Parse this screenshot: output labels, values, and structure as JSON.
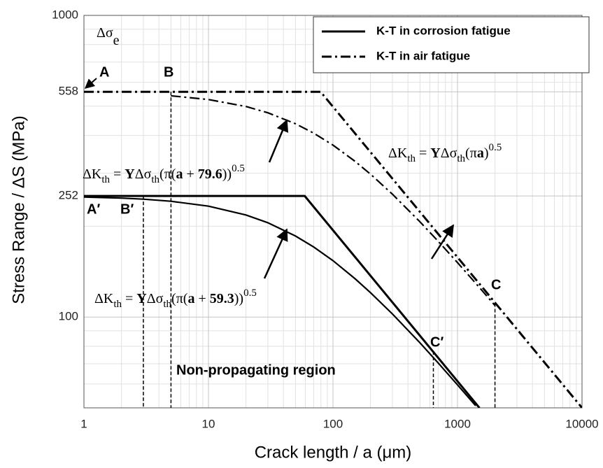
{
  "chart_data": {
    "type": "line",
    "log_scale": {
      "x": true,
      "y": true
    },
    "grid": true,
    "x_label": "Crack length / a (μm)",
    "y_label": "Stress Range / ΔS (MPa)",
    "xlim": [
      1,
      10000
    ],
    "xticks": [
      1,
      10,
      100,
      1000,
      10000
    ],
    "xminor": [
      2,
      3,
      4,
      5,
      6,
      7,
      8,
      9,
      20,
      30,
      40,
      50,
      60,
      70,
      80,
      90,
      200,
      300,
      400,
      500,
      600,
      700,
      800,
      900,
      2000,
      3000,
      4000,
      5000,
      6000,
      7000,
      8000,
      9000
    ],
    "ylim": [
      50,
      1000
    ],
    "yticks": [
      100,
      252,
      558,
      1000
    ],
    "yminor": [
      60,
      70,
      80,
      90,
      200,
      300,
      400,
      500,
      600,
      700,
      800,
      900
    ],
    "legend": "upper right",
    "series": [
      {
        "name": "K-T in corrosion fatigue",
        "color": "#000000",
        "dash": "solid",
        "x": [
          1,
          59.3,
          1500
        ],
        "values": [
          252,
          252,
          50
        ]
      },
      {
        "name": "K-T in air fatigue",
        "color": "#000000",
        "dash": "dashdot",
        "x": [
          1,
          79.6,
          10000
        ],
        "values": [
          558,
          558,
          50
        ]
      }
    ],
    "curves": [
      {
        "color": "#000000",
        "dash": "solid",
        "x": [
          1,
          2,
          3,
          5,
          10,
          20,
          30,
          50,
          70,
          100,
          150,
          200,
          300,
          500,
          700,
          1000,
          1400
        ],
        "values": [
          249.9,
          247.9,
          245.9,
          242,
          233.1,
          217.9,
          205.4,
          185.6,
          170.7,
          153.8,
          134.1,
          120.5,
          102.4,
          82.1,
          70.4,
          59.6,
          50.8
        ]
      },
      {
        "color": "#000000",
        "dash": "dashdot",
        "x": [
          5,
          10,
          20,
          30,
          50,
          70,
          100,
          150,
          200,
          300,
          500,
          700,
          1000,
          1500,
          2000
        ],
        "values": [
          541.3,
          526,
          498.8,
          475.5,
          437.3,
          407,
          371.5,
          328.5,
          297.7,
          255.5,
          206.8,
          178.3,
          151.5,
          125.3,
          109.2
        ]
      }
    ],
    "drop_lines": [
      {
        "x": 3,
        "y": 252
      },
      {
        "x": 5,
        "y": 558
      },
      {
        "x": 640,
        "y": 77
      },
      {
        "x": 2000,
        "y": 111
      }
    ],
    "point_labels": [
      "A",
      "B",
      "A′",
      "B′",
      "C",
      "C′"
    ],
    "endurance_label": {
      "text": "Δσ",
      "sub": "e"
    },
    "region_label": "Non-propagating region",
    "formulas": [
      {
        "parts": [
          "ΔK",
          "th",
          " = ",
          "Y",
          "Δσ",
          "th",
          "(π(",
          "a",
          " + ",
          "79.6",
          "))",
          "0.5"
        ],
        "styles": [
          "n",
          "sub",
          "n",
          "b",
          "n",
          "sub",
          "n",
          "b",
          "n",
          "b",
          "n",
          "sup"
        ]
      },
      {
        "parts": [
          "ΔK",
          "th",
          " = ",
          "Y",
          "Δσ",
          "th",
          "(π(",
          "a",
          " + ",
          "59.3",
          "))",
          "0.5"
        ],
        "styles": [
          "n",
          "sub",
          "n",
          "b",
          "n",
          "sub",
          "n",
          "b",
          "n",
          "b",
          "n",
          "sup"
        ]
      },
      {
        "parts": [
          "ΔK",
          "th",
          " = ",
          "Y",
          "Δσ",
          "th",
          "(π",
          "a",
          ")",
          "0.5"
        ],
        "styles": [
          "n",
          "sub",
          "n",
          "b",
          "n",
          "sub",
          "n",
          "b",
          "n",
          "sup"
        ]
      }
    ]
  }
}
